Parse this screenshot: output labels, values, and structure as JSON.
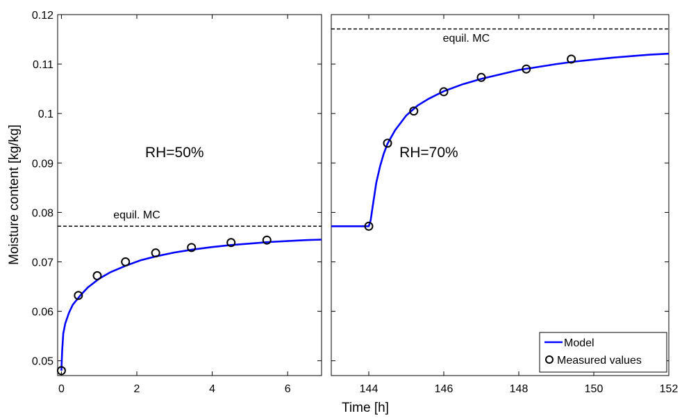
{
  "chart_data": {
    "type": "line",
    "ylabel": "Moisture content [kg/kg]",
    "xlabel": "Time [h]",
    "ylim": [
      0.047,
      0.12
    ],
    "yticks": [
      "0.05",
      "0.06",
      "0.07",
      "0.08",
      "0.09",
      "0.1",
      "0.11",
      "0.12"
    ],
    "ytick_values": [
      0.05,
      0.06,
      0.07,
      0.08,
      0.09,
      0.1,
      0.11,
      0.12
    ],
    "colors": {
      "model": "#0000ff",
      "measured": "#000000",
      "equil": "#000000"
    },
    "panels": [
      {
        "xlim": [
          -0.1,
          6.9
        ],
        "xticks": [
          "0",
          "2",
          "4",
          "6"
        ],
        "xtick_values": [
          0,
          2,
          4,
          6
        ],
        "annotation": "RH=50%",
        "annotation_pos": {
          "x": 3.0,
          "y": 0.0912
        },
        "equil_label": "equil. MC",
        "equil_label_pos": {
          "x": 2.0,
          "y": 0.0788
        },
        "equil_mc": 0.0772,
        "model": {
          "x": [
            0,
            0.02,
            0.05,
            0.1,
            0.2,
            0.3,
            0.5,
            0.7,
            1.0,
            1.3,
            1.7,
            2.1,
            2.5,
            3.0,
            3.5,
            4.0,
            4.5,
            5.0,
            5.5,
            6.0,
            6.5,
            6.9
          ],
          "y": [
            0.048,
            0.052,
            0.0555,
            0.0575,
            0.0597,
            0.0613,
            0.0632,
            0.0648,
            0.0666,
            0.0679,
            0.0692,
            0.0703,
            0.0711,
            0.0719,
            0.0725,
            0.073,
            0.0734,
            0.0737,
            0.074,
            0.0742,
            0.0744,
            0.0745
          ]
        },
        "measured": {
          "x": [
            0,
            0.45,
            0.95,
            1.7,
            2.5,
            3.45,
            4.5,
            5.45
          ],
          "y": [
            0.048,
            0.0632,
            0.0672,
            0.07,
            0.0718,
            0.0729,
            0.0739,
            0.0744
          ]
        }
      },
      {
        "xlim": [
          143,
          152
        ],
        "xticks": [
          "144",
          "146",
          "148",
          "150",
          "152"
        ],
        "xtick_values": [
          144,
          146,
          148,
          150,
          152
        ],
        "annotation": "RH=70%",
        "annotation_pos": {
          "x": 145.6,
          "y": 0.0912
        },
        "equil_label": "equil. MC",
        "equil_label_pos": {
          "x": 146.6,
          "y": 0.1145
        },
        "equil_mc": 0.1171,
        "model": {
          "x": [
            143,
            143.5,
            144.0,
            144.05,
            144.1,
            144.2,
            144.3,
            144.4,
            144.5,
            144.7,
            145.0,
            145.3,
            145.6,
            146.0,
            146.5,
            147.0,
            147.5,
            148.0,
            148.5,
            149.0,
            149.5,
            150.0,
            150.5,
            151.0,
            151.5,
            152.0
          ],
          "y": [
            0.0772,
            0.0772,
            0.0772,
            0.0784,
            0.081,
            0.086,
            0.0893,
            0.0919,
            0.0939,
            0.0966,
            0.0996,
            0.1016,
            0.103,
            0.1045,
            0.1059,
            0.107,
            0.1079,
            0.1088,
            0.1094,
            0.11,
            0.1105,
            0.1109,
            0.1113,
            0.1116,
            0.1119,
            0.1121
          ]
        },
        "measured": {
          "x": [
            144.0,
            144.5,
            145.2,
            146.0,
            147.0,
            148.2,
            149.4
          ],
          "y": [
            0.0772,
            0.094,
            0.1005,
            0.1044,
            0.1073,
            0.109,
            0.111
          ]
        }
      }
    ],
    "legend": {
      "position": "bottom-right",
      "entries": [
        {
          "label": "Model",
          "kind": "line"
        },
        {
          "label": "Measured values",
          "kind": "marker"
        }
      ]
    }
  }
}
